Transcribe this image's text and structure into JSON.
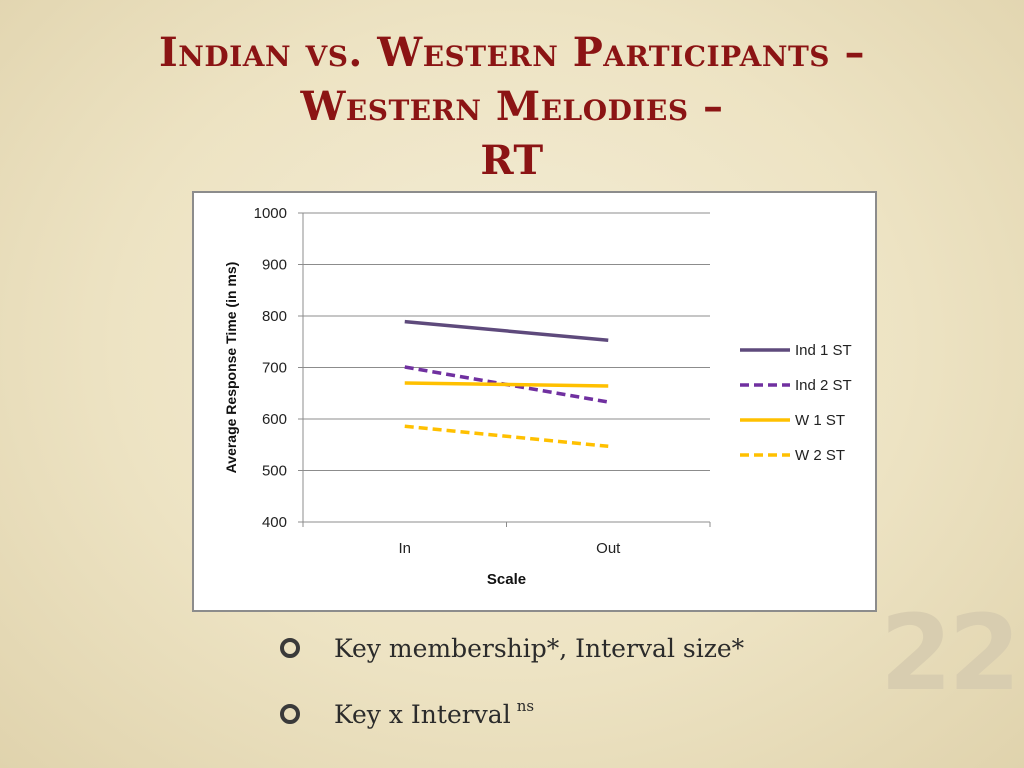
{
  "slide": {
    "title_lines": [
      "Indian vs. Western Participants –",
      "Western Melodies –",
      "RT"
    ],
    "bullets": [
      {
        "text": "Key membership*, Interval size*",
        "sup": ""
      },
      {
        "text": "Key x Interval",
        "sup": "ns"
      }
    ],
    "page_number": "22"
  },
  "chart_data": {
    "type": "line",
    "title": "",
    "xlabel": "Scale",
    "ylabel": "Average Response Time (in ms)",
    "categories": [
      "In",
      "Out"
    ],
    "ylim": [
      400,
      1000
    ],
    "yticks": [
      "400",
      "500",
      "600",
      "700",
      "800",
      "900",
      "1000"
    ],
    "grid": true,
    "legend_position": "right",
    "series": [
      {
        "name": "Ind 1 ST",
        "values": [
          789,
          753
        ],
        "color": "#5e4a7c",
        "dash": "solid"
      },
      {
        "name": "Ind 2 ST",
        "values": [
          701,
          633
        ],
        "color": "#7030a0",
        "dash": "dashed"
      },
      {
        "name": "W 1 ST",
        "values": [
          670,
          664
        ],
        "color": "#ffc000",
        "dash": "solid"
      },
      {
        "name": "W 2 ST",
        "values": [
          586,
          547
        ],
        "color": "#ffc000",
        "dash": "dashed"
      }
    ]
  }
}
